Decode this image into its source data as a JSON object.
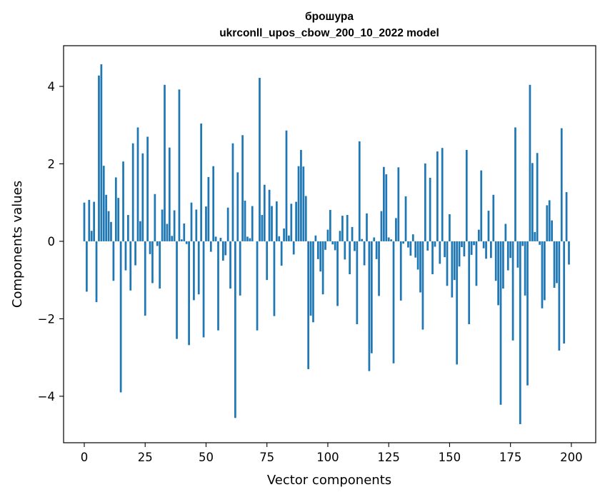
{
  "chart_data": {
    "type": "bar",
    "title_line1": "брошура",
    "title_line2": "ukrconll_upos_cbow_200_10_2022 model",
    "xlabel": "Vector components",
    "ylabel": "Components values",
    "xlim": [
      -8.5,
      210
    ],
    "ylim": [
      -5.2,
      5.05
    ],
    "xticks": [
      0,
      25,
      50,
      75,
      100,
      125,
      150,
      175,
      200
    ],
    "xtick_labels": [
      "0",
      "25",
      "50",
      "75",
      "100",
      "125",
      "150",
      "175",
      "200"
    ],
    "yticks": [
      4,
      2,
      0,
      -2,
      -4
    ],
    "ytick_labels": [
      "4",
      "2",
      "0",
      "−2",
      "−4"
    ],
    "bar_color": "#1f77b4",
    "values": [
      1.0,
      -1.3,
      1.07,
      0.27,
      1.02,
      -1.57,
      4.28,
      4.57,
      1.95,
      1.2,
      0.78,
      0.5,
      -1.02,
      1.65,
      1.12,
      -3.9,
      2.06,
      -0.75,
      0.68,
      -1.27,
      2.53,
      -0.62,
      2.94,
      0.52,
      2.27,
      -1.92,
      2.7,
      -0.33,
      -1.08,
      1.22,
      -0.12,
      -1.22,
      0.82,
      4.04,
      0.45,
      2.42,
      0.14,
      0.8,
      -2.52,
      3.92,
      0.05,
      0.46,
      -0.07,
      -2.68,
      1.0,
      -1.52,
      0.82,
      -1.37,
      3.04,
      -2.48,
      0.9,
      1.66,
      -0.27,
      1.94,
      0.12,
      -2.3,
      0.09,
      -0.5,
      -0.36,
      0.87,
      -1.22,
      2.53,
      -4.56,
      1.78,
      -1.4,
      2.74,
      1.05,
      0.12,
      0.08,
      0.91,
      0.0,
      -2.3,
      4.22,
      0.68,
      1.46,
      -1.0,
      1.33,
      0.91,
      -1.93,
      1.03,
      0.13,
      -0.63,
      0.33,
      2.86,
      0.15,
      0.97,
      -0.34,
      1.02,
      1.94,
      2.36,
      1.93,
      1.17,
      -3.3,
      -1.92,
      -2.09,
      0.15,
      -0.46,
      -0.78,
      -1.37,
      -0.22,
      0.3,
      0.81,
      -0.08,
      -0.23,
      -1.67,
      0.27,
      0.66,
      -0.47,
      0.68,
      -0.85,
      0.37,
      -0.25,
      -2.14,
      2.58,
      0.06,
      -0.62,
      0.72,
      -3.35,
      -2.89,
      0.1,
      -0.46,
      -1.41,
      0.78,
      1.92,
      1.73,
      0.1,
      0.05,
      -3.15,
      0.6,
      1.91,
      -1.53,
      -0.06,
      1.16,
      -0.16,
      -0.37,
      0.18,
      -0.42,
      -0.73,
      -1.32,
      -2.28,
      2.01,
      -0.24,
      1.64,
      -0.85,
      -0.14,
      2.32,
      -0.58,
      2.41,
      -0.41,
      -1.15,
      0.7,
      -1.45,
      -1.0,
      -3.18,
      -0.65,
      -0.15,
      -0.39,
      2.36,
      -2.14,
      -0.35,
      -0.1,
      -1.15,
      0.3,
      1.83,
      -0.18,
      -0.45,
      0.79,
      -0.43,
      1.2,
      -1.02,
      -1.65,
      -4.22,
      -1.22,
      0.45,
      -0.75,
      -0.43,
      -2.56,
      2.94,
      -0.68,
      -4.72,
      -0.12,
      -1.4,
      -3.72,
      4.04,
      2.02,
      0.24,
      2.28,
      -0.09,
      -1.73,
      -1.52,
      0.93,
      1.06,
      0.54,
      -1.2,
      -1.08,
      -2.82,
      2.92,
      -2.64,
      1.27,
      -0.6
    ]
  }
}
